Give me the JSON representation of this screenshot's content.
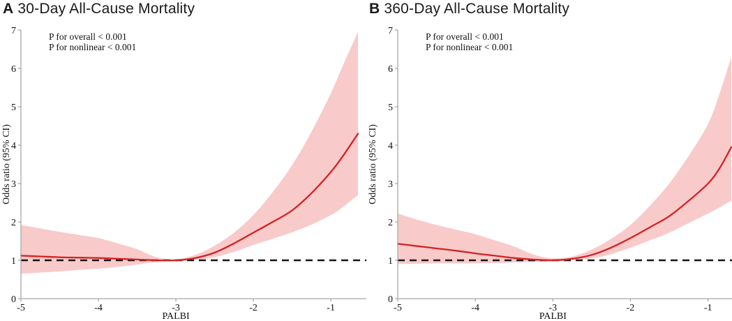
{
  "figure": {
    "background": "#ffffff",
    "colors": {
      "curve": "#d42222",
      "confidence_band": "#f9caca",
      "reference_line": "#151515",
      "axis": "#a8a8a8",
      "text": "#111111"
    }
  },
  "chart_data": [
    {
      "type": "line",
      "panel": "A",
      "title": "30-Day All-Cause Mortality",
      "xlabel": "PALBI",
      "ylabel": "Odds ratio (95% CI)",
      "annotations": [
        "P for overall < 0.001",
        "P for nonlinear < 0.001"
      ],
      "xlim": [
        -5,
        -0.65
      ],
      "ylim": [
        0,
        7
      ],
      "xticks": [
        -5,
        -4,
        -3,
        -2,
        -1
      ],
      "yticks": [
        0,
        1,
        2,
        3,
        4,
        5,
        6,
        7
      ],
      "reference_line_y": 1,
      "grid": false,
      "legend": "none",
      "x": [
        -5,
        -4.75,
        -4.5,
        -4.25,
        -4,
        -3.75,
        -3.5,
        -3.25,
        -3,
        -2.75,
        -2.5,
        -2.25,
        -2,
        -1.75,
        -1.5,
        -1.25,
        -1,
        -0.85,
        -0.65
      ],
      "series": [
        {
          "name": "Odds ratio",
          "values": [
            1.12,
            1.1,
            1.08,
            1.07,
            1.06,
            1.04,
            1.02,
            1.0,
            1.0,
            1.06,
            1.2,
            1.44,
            1.72,
            2.0,
            2.3,
            2.75,
            3.3,
            3.7,
            4.3
          ]
        },
        {
          "name": "Lower 95% CI",
          "values": [
            0.65,
            0.68,
            0.71,
            0.75,
            0.78,
            0.83,
            0.89,
            0.96,
            0.98,
            1.01,
            1.08,
            1.22,
            1.4,
            1.56,
            1.73,
            1.93,
            2.18,
            2.38,
            2.7
          ]
        },
        {
          "name": "Upper 95% CI",
          "values": [
            1.92,
            1.83,
            1.74,
            1.66,
            1.58,
            1.44,
            1.29,
            1.08,
            1.03,
            1.14,
            1.38,
            1.72,
            2.18,
            2.78,
            3.48,
            4.35,
            5.35,
            6.05,
            6.95
          ]
        }
      ]
    },
    {
      "type": "line",
      "panel": "B",
      "title": "360-Day All-Cause Mortality",
      "xlabel": "PALBI",
      "ylabel": "Odds ratio (95% CI)",
      "annotations": [
        "P for overall < 0.001",
        "P for nonlinear < 0.001"
      ],
      "xlim": [
        -5,
        -0.7
      ],
      "ylim": [
        0,
        7
      ],
      "xticks": [
        -5,
        -4,
        -3,
        -2,
        -1
      ],
      "yticks": [
        0,
        1,
        2,
        3,
        4,
        5,
        6,
        7
      ],
      "reference_line_y": 1,
      "grid": false,
      "legend": "none",
      "x": [
        -5,
        -4.75,
        -4.5,
        -4.25,
        -4,
        -3.75,
        -3.5,
        -3.25,
        -3,
        -2.75,
        -2.5,
        -2.25,
        -2,
        -1.75,
        -1.5,
        -1.25,
        -1,
        -0.85,
        -0.7
      ],
      "series": [
        {
          "name": "Odds ratio",
          "values": [
            1.43,
            1.37,
            1.31,
            1.25,
            1.18,
            1.12,
            1.06,
            1.02,
            1.0,
            1.04,
            1.14,
            1.33,
            1.58,
            1.86,
            2.15,
            2.55,
            3.0,
            3.4,
            3.95
          ]
        },
        {
          "name": "Lower 95% CI",
          "values": [
            0.9,
            0.91,
            0.92,
            0.92,
            0.92,
            0.93,
            0.94,
            0.96,
            0.98,
            1.0,
            1.05,
            1.16,
            1.33,
            1.52,
            1.72,
            1.97,
            2.22,
            2.38,
            2.55
          ]
        },
        {
          "name": "Upper 95% CI",
          "values": [
            2.22,
            2.06,
            1.92,
            1.8,
            1.68,
            1.52,
            1.36,
            1.15,
            1.05,
            1.1,
            1.28,
            1.56,
            1.92,
            2.42,
            3.0,
            3.72,
            4.55,
            5.35,
            6.3
          ]
        }
      ]
    }
  ]
}
